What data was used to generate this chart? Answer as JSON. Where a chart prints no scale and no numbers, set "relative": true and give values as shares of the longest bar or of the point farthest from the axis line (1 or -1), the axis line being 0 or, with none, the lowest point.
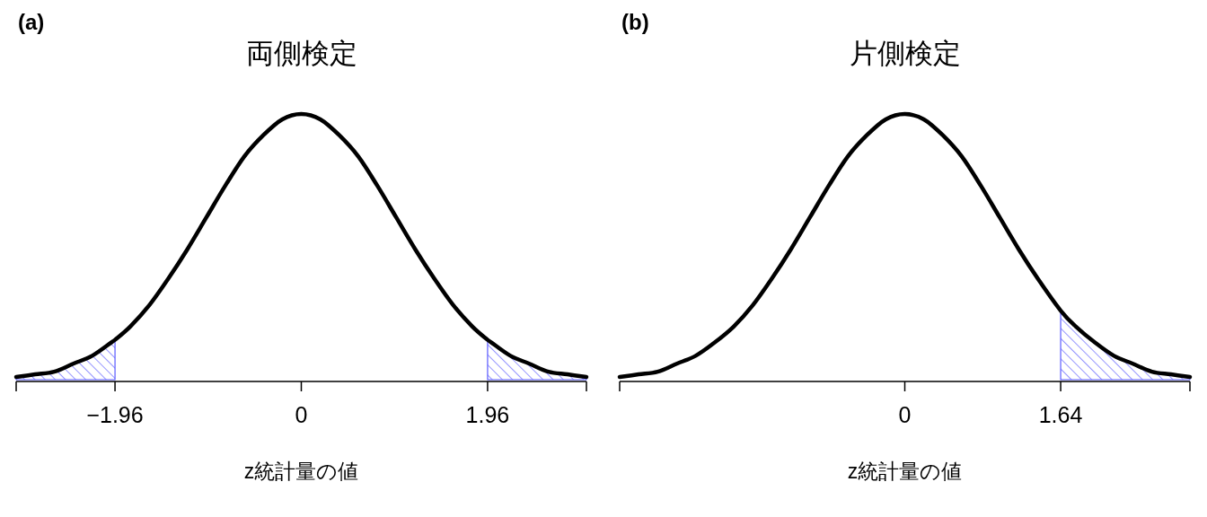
{
  "chart_data": [
    {
      "type": "line",
      "title": "両側検定",
      "xlabel": "z統計量の値",
      "annotations": [
        "(a)"
      ],
      "relative": true,
      "xlim": [
        -3,
        3
      ],
      "xticks": [
        {
          "value": -3,
          "label": null
        },
        {
          "value": -1.96,
          "label": "−1.96"
        },
        0,
        1.96,
        {
          "value": 3,
          "label": null
        }
      ],
      "x": [
        -3,
        -2.8,
        -2.6,
        -2.4,
        -2.2,
        -2,
        -1.96,
        -1.8,
        -1.6,
        -1.4,
        -1.2,
        -1,
        -0.8,
        -0.6,
        -0.4,
        -0.2,
        0,
        0.2,
        0.4,
        0.6,
        0.8,
        1,
        1.2,
        1.4,
        1.6,
        1.8,
        1.96,
        2,
        2.2,
        2.4,
        2.6,
        2.8,
        3
      ],
      "series": [
        {
          "type": "area",
          "color": "#5a5aff",
          "x": [
            -3,
            -2.8,
            -2.6,
            -2.4,
            -2.2,
            -2,
            -1.96
          ],
          "values": [
            0.01,
            0.02,
            0.03,
            0.06,
            0.09,
            0.14,
            0.15
          ]
        },
        {
          "type": "area",
          "color": "#5a5aff",
          "x": [
            1.96,
            2,
            2.2,
            2.4,
            2.6,
            2.8,
            3
          ],
          "values": [
            0.15,
            0.14,
            0.09,
            0.06,
            0.03,
            0.02,
            0.01
          ]
        },
        {
          "color": "#000000",
          "values": [
            0.01,
            0.02,
            0.03,
            0.06,
            0.09,
            0.14,
            0.15,
            0.2,
            0.28,
            0.38,
            0.49,
            0.61,
            0.73,
            0.84,
            0.92,
            0.98,
            1,
            0.98,
            0.92,
            0.84,
            0.73,
            0.61,
            0.49,
            0.38,
            0.28,
            0.2,
            0.15,
            0.14,
            0.09,
            0.06,
            0.03,
            0.02,
            0.01
          ]
        }
      ]
    },
    {
      "type": "line",
      "title": "片側検定",
      "xlabel": "z統計量の値",
      "annotations": [
        "(b)"
      ],
      "relative": true,
      "xlim": [
        -3,
        3
      ],
      "xticks": [
        {
          "value": -3,
          "label": null
        },
        0,
        1.64,
        {
          "value": 3,
          "label": null
        }
      ],
      "x": [
        -3,
        -2.8,
        -2.6,
        -2.4,
        -2.2,
        -2,
        -1.8,
        -1.6,
        -1.4,
        -1.2,
        -1,
        -0.8,
        -0.6,
        -0.4,
        -0.2,
        0,
        0.2,
        0.4,
        0.6,
        0.8,
        1,
        1.2,
        1.4,
        1.64,
        1.8,
        2,
        2.2,
        2.4,
        2.6,
        2.8,
        3
      ],
      "series": [
        {
          "type": "area",
          "color": "#5a5aff",
          "x": [
            1.64,
            1.8,
            2,
            2.2,
            2.4,
            2.6,
            2.8,
            3
          ],
          "values": [
            0.26,
            0.2,
            0.14,
            0.09,
            0.06,
            0.03,
            0.02,
            0.01
          ]
        },
        {
          "color": "#000000",
          "values": [
            0.01,
            0.02,
            0.03,
            0.06,
            0.09,
            0.14,
            0.2,
            0.28,
            0.38,
            0.49,
            0.61,
            0.73,
            0.84,
            0.92,
            0.98,
            1,
            0.98,
            0.92,
            0.84,
            0.73,
            0.61,
            0.49,
            0.38,
            0.26,
            0.2,
            0.14,
            0.09,
            0.06,
            0.03,
            0.02,
            0.01
          ]
        }
      ]
    }
  ]
}
